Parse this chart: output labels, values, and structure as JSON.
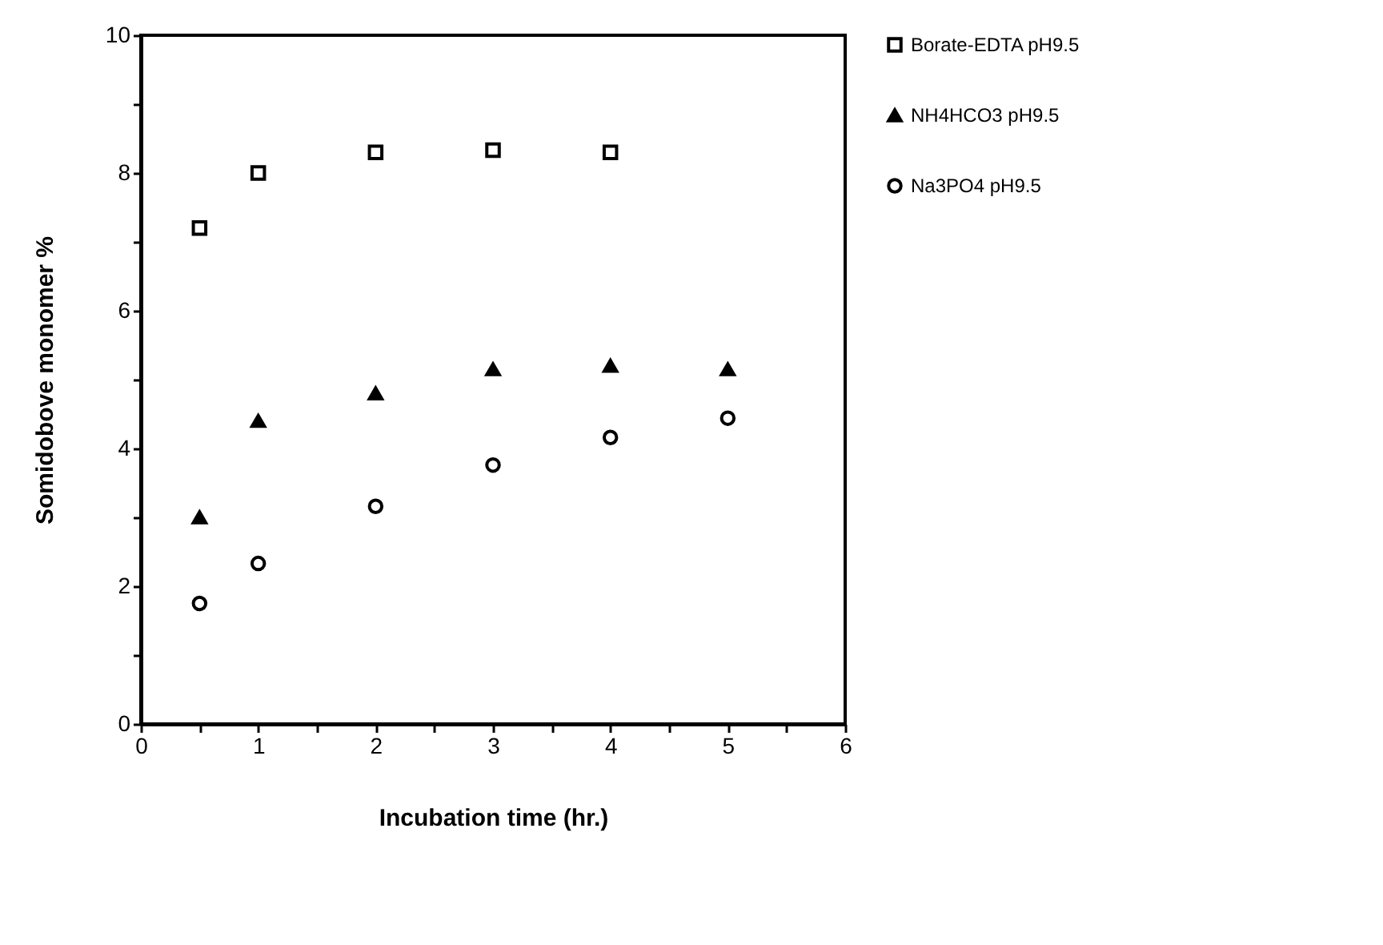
{
  "chart_data": {
    "type": "scatter",
    "xlabel": "Incubation   time   (hr.)",
    "ylabel": "Somidobove   monomer   %",
    "series": [
      {
        "name": "Borate-EDTA pH9.5",
        "color": "#000000",
        "marker": "square",
        "x": [
          0.5,
          1,
          2,
          3,
          4
        ],
        "values": [
          7.2,
          8.0,
          8.3,
          8.33,
          8.3
        ]
      },
      {
        "name": "NH4HCO3 pH9.5",
        "color": "#000000",
        "marker": "triangle",
        "x": [
          0.5,
          1,
          2,
          3,
          4,
          5
        ],
        "values": [
          3.0,
          4.4,
          4.8,
          5.15,
          5.2,
          5.15
        ]
      },
      {
        "name": "Na3PO4 pH9.5",
        "color": "#000000",
        "marker": "circle",
        "x": [
          0.5,
          1,
          2,
          3,
          4,
          5
        ],
        "values": [
          1.75,
          2.33,
          3.16,
          3.76,
          4.16,
          4.44
        ]
      }
    ],
    "xlim": [
      0,
      6
    ],
    "ylim": [
      0,
      10
    ],
    "xticks": [
      0,
      {
        "value": 0.5,
        "label": null
      },
      1,
      {
        "value": 1.5,
        "label": null
      },
      2,
      {
        "value": 2.5,
        "label": null
      },
      3,
      {
        "value": 3.5,
        "label": null
      },
      4,
      {
        "value": 4.5,
        "label": null
      },
      5,
      {
        "value": 5.5,
        "label": null
      },
      6
    ],
    "yticks": [
      0,
      {
        "value": 1,
        "label": null
      },
      2,
      {
        "value": 3,
        "label": null
      },
      4,
      {
        "value": 5,
        "label": null
      },
      6,
      {
        "value": 7,
        "label": null
      },
      8,
      {
        "value": 9,
        "label": null
      },
      10
    ],
    "grid": false,
    "legend": "right"
  }
}
